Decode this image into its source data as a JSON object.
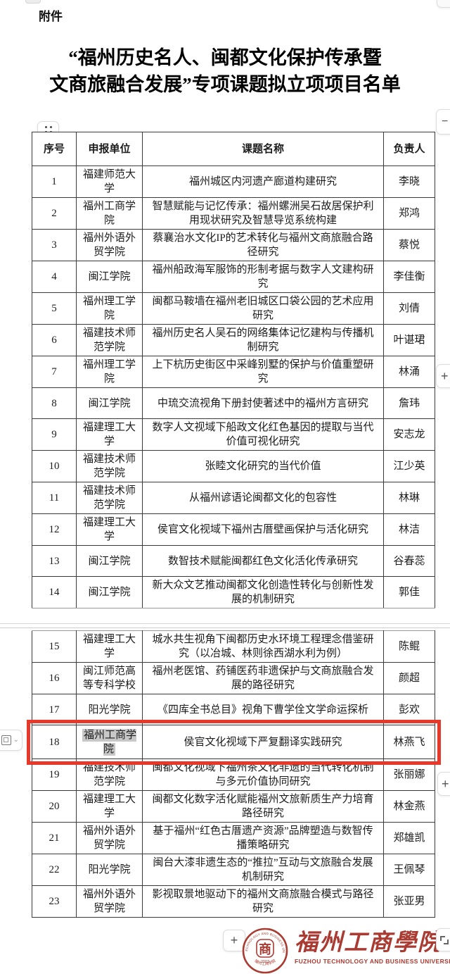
{
  "doc": {
    "attachment_label": "附件",
    "title_line1": "“福州历史名人、闽都文化保护传承暨",
    "title_line2": "文商旅融合发展”专项课题拟立项项目名单"
  },
  "table": {
    "headers": [
      "序号",
      "申报单位",
      "课题名称",
      "负责人"
    ],
    "pages": [
      {
        "rows": [
          {
            "no": "1",
            "unit": "福建师范大学",
            "topic": "福州城区内河遗产廊道构建研究",
            "leader": "李晓"
          },
          {
            "no": "2",
            "unit": "福州工商学院",
            "topic": "智慧赋能与记忆传承：福州螺洲吴石故居保护利用现状研究及智慧导览系统构建",
            "leader": "郑鸿"
          },
          {
            "no": "3",
            "unit": "福州外语外贸学院",
            "topic": "蔡襄治水文化IP的艺术转化与福州文商旅融合路径研究",
            "leader": "蔡悦"
          },
          {
            "no": "4",
            "unit": "闽江学院",
            "topic": "福州船政海军服饰的形制考据与数字人文建构研究",
            "leader": "李佳衡"
          },
          {
            "no": "5",
            "unit": "福州理工学院",
            "topic": "闽都马鞍墙在福州老旧城区口袋公园的艺术应用研究",
            "leader": "刘倩"
          },
          {
            "no": "6",
            "unit": "福建技术师范学院",
            "topic": "福州历史名人吴石的网络集体记忆建构与传播机制研究",
            "leader": "叶谌珺"
          },
          {
            "no": "7",
            "unit": "福州理工学院",
            "topic": "上下杭历史街区中采峰别墅的保护与价值重塑研究",
            "leader": "林涌"
          },
          {
            "no": "8",
            "unit": "闽江学院",
            "topic": "中琉交流视角下册封使著述中的福州方言研究",
            "leader": "詹玮"
          },
          {
            "no": "9",
            "unit": "福建理工大学",
            "topic": "数字人文视域下船政文化红色基因的提取与当代价值可视化研究",
            "leader": "安志龙"
          },
          {
            "no": "10",
            "unit": "福建技术师范学院",
            "topic": "张睦文化研究的当代价值",
            "leader": "江少英"
          },
          {
            "no": "11",
            "unit": "福建技术师范学院",
            "topic": "从福州谚语论闽都文化的包容性",
            "leader": "林琳"
          },
          {
            "no": "12",
            "unit": "福建理工大学",
            "topic": "侯官文化视域下福州古厝壁画保护与活化研究",
            "leader": "林洁"
          },
          {
            "no": "13",
            "unit": "闽江学院",
            "topic": "数智技术赋能闽都红色文化活化传承研究",
            "leader": "谷春蕊"
          },
          {
            "no": "14",
            "unit": "闽江学院",
            "topic": "新大众文艺推动闽都文化创造性转化与创新性发展的机制研究",
            "leader": "郭佳"
          }
        ]
      },
      {
        "rows": [
          {
            "no": "15",
            "unit": "福建理工大学",
            "topic": "城水共生视角下闽都历史水环境工程理念借鉴研究（以冶城、林则徐西湖水利为例）",
            "leader": "陈鲲"
          },
          {
            "no": "16",
            "unit": "闽江师范高等专科学校",
            "topic": "福州老医馆、药铺医药非遗保护与文商旅融合发展的路径研究",
            "leader": "颜超"
          },
          {
            "no": "17",
            "unit": "阳光学院",
            "topic": "《四库全书总目》视角下曹学佺文学命运探析",
            "leader": "彭欢"
          },
          {
            "no": "18",
            "unit": "福州工商学院",
            "topic": "侯官文化视域下严复翻译实践研究",
            "leader": "林燕飞",
            "highlighted": true
          },
          {
            "no": "19",
            "unit": "福建技术师范学院",
            "topic": "闽都文化视域下福州茶文化非遗的当代转化机制与多元价值协同研究",
            "leader": "张丽娜"
          },
          {
            "no": "20",
            "unit": "福建理工大学",
            "topic": "闽都文化数字活化赋能福州文旅新质生产力培育路径研究",
            "leader": "林金燕"
          },
          {
            "no": "21",
            "unit": "福州外语外贸学院",
            "topic": "基于福州“红色古厝遗产资源”品牌塑造与数智传播策略研究",
            "leader": "郑雄凯"
          },
          {
            "no": "22",
            "unit": "阳光学院",
            "topic": "闽台大漆非遗生态的“推拉”互动与文旅融合发展机制研究",
            "leader": "王佩琴"
          },
          {
            "no": "23",
            "unit": "福州外语外贸学院",
            "topic": "影视取景地驱动下的福州文商旅融合模式与路径研究",
            "leader": "张亚男"
          }
        ]
      }
    ]
  },
  "highlight": {
    "row_no": "18",
    "box_color": "#E8382A",
    "selection_color": "#C8C8C8"
  },
  "controls": {
    "minus_label": "−",
    "plus_label": "+",
    "chevron_label": "⌄"
  },
  "footer": {
    "plus_label": "+",
    "logo_text_cn": "福州工商學院",
    "logo_text_en": "FUZHOU TECHNOLOGY AND BUSINESS UNIVERSITY",
    "seal_char": "商",
    "seal_year": "2003",
    "seal_ring_text_top": "FUZHOU TECHNOLOGY AND BUSINESS UNIVERSITY",
    "seal_ring_text_bottom": "福州工商学院",
    "brand_color": "#A93B32"
  }
}
